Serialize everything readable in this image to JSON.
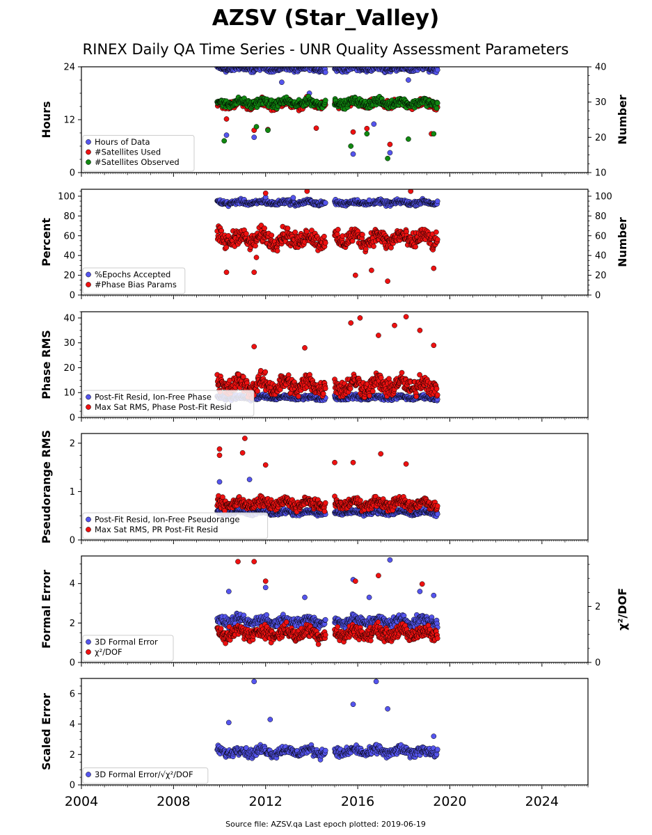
{
  "title": "AZSV (Star_Valley)",
  "subtitle": "RINEX Daily QA Time Series - UNR Quality Assessment Parameters",
  "footer": "Source file: AZSV.qa Last epoch plotted: 2019-06-19",
  "colors": {
    "blue": "#5555ee",
    "red": "#ee1111",
    "green": "#118811"
  },
  "x_axis": {
    "min": 2004.0,
    "max": 2026.0,
    "ticks": [
      "2004",
      "2008",
      "2012",
      "2016",
      "2020",
      "2024"
    ]
  },
  "chart_data": [
    {
      "type": "scatter",
      "ylabel_left": "Hours",
      "ylabel_right": "Number",
      "ylim_left": [
        0,
        24
      ],
      "ylim_right": [
        10,
        40
      ],
      "yticks_left": [
        "0",
        "12",
        "24"
      ],
      "yticks_right": [
        "10",
        "20",
        "30",
        "40"
      ],
      "legend": "lower-left",
      "series": [
        {
          "name": "Hours of Data",
          "color": "blue",
          "axis": "left",
          "base": 23.6,
          "spread": 0.5,
          "outliers": [
            [
              2010.3,
              8.5
            ],
            [
              2011.5,
              8.0
            ],
            [
              2012.7,
              20.5
            ],
            [
              2013.9,
              18.0
            ],
            [
              2015.8,
              4.2
            ],
            [
              2016.7,
              11.0
            ],
            [
              2017.4,
              4.5
            ],
            [
              2018.2,
              21.0
            ]
          ]
        },
        {
          "name": "#Satellites Used",
          "color": "red",
          "axis": "right",
          "base": 29.5,
          "spread": 1.0,
          "outliers": [
            [
              2010.3,
              25.2
            ],
            [
              2011.5,
              22.0
            ],
            [
              2012.1,
              22.2
            ],
            [
              2014.2,
              22.6
            ],
            [
              2015.8,
              21.5
            ],
            [
              2016.4,
              22.5
            ],
            [
              2017.4,
              18.0
            ],
            [
              2019.2,
              21.0
            ]
          ]
        },
        {
          "name": "#Satellites Observed",
          "color": "green",
          "axis": "right",
          "base": 29.8,
          "spread": 0.9,
          "outliers": [
            [
              2010.2,
              19.0
            ],
            [
              2011.6,
              23.0
            ],
            [
              2012.1,
              22.0
            ],
            [
              2015.7,
              17.5
            ],
            [
              2016.4,
              21.0
            ],
            [
              2017.3,
              14.0
            ],
            [
              2018.2,
              19.5
            ],
            [
              2019.3,
              21.0
            ]
          ]
        }
      ]
    },
    {
      "type": "scatter",
      "ylabel_left": "Percent",
      "ylabel_right": "Number",
      "ylim_left": [
        0,
        107
      ],
      "ylim_right": [
        0,
        107
      ],
      "yticks_left": [
        "0",
        "20",
        "40",
        "60",
        "80",
        "100"
      ],
      "yticks_right": [
        "0",
        "20",
        "40",
        "60",
        "80",
        "100"
      ],
      "legend": "lower-left",
      "series": [
        {
          "name": "%Epochs Accepted",
          "color": "blue",
          "axis": "left",
          "base": 93.5,
          "spread": 2.0,
          "outliers": [
            [
              2012.0,
              99.0
            ],
            [
              2013.2,
              98.5
            ],
            [
              2016.5,
              96.0
            ]
          ]
        },
        {
          "name": "#Phase Bias Params",
          "color": "red",
          "axis": "right",
          "base": 57.0,
          "spread": 7.0,
          "outliers": [
            [
              2010.3,
              23.0
            ],
            [
              2011.5,
              23.0
            ],
            [
              2011.6,
              38.0
            ],
            [
              2012.0,
              103.0
            ],
            [
              2013.8,
              105.0
            ],
            [
              2015.9,
              20.0
            ],
            [
              2016.6,
              25.0
            ],
            [
              2017.3,
              14.0
            ],
            [
              2018.3,
              105.0
            ],
            [
              2019.3,
              27.0
            ]
          ]
        }
      ]
    },
    {
      "type": "scatter",
      "ylabel_left": "Phase RMS",
      "ylim_left": [
        0,
        42.5
      ],
      "yticks_left": [
        "0",
        "10",
        "20",
        "30",
        "40"
      ],
      "legend": "lower-left",
      "series": [
        {
          "name": "Post-Fit Resid, Ion-Free Phase",
          "color": "blue",
          "axis": "left",
          "base": 8.0,
          "spread": 0.7,
          "outliers": []
        },
        {
          "name": "Max Sat RMS, Phase Post-Fit Resid",
          "color": "red",
          "axis": "left",
          "base": 13.0,
          "spread": 3.0,
          "outliers": [
            [
              2011.5,
              28.5
            ],
            [
              2013.7,
              28.0
            ],
            [
              2015.7,
              38.0
            ],
            [
              2016.1,
              40.0
            ],
            [
              2016.9,
              33.0
            ],
            [
              2017.6,
              37.0
            ],
            [
              2018.1,
              40.5
            ],
            [
              2018.7,
              35.0
            ],
            [
              2019.3,
              29.0
            ]
          ]
        }
      ]
    },
    {
      "type": "scatter",
      "ylabel_left": "Pseudorange RMS",
      "ylim_left": [
        0,
        2.2
      ],
      "yticks_left": [
        "0",
        "1",
        "2"
      ],
      "legend": "lower-left",
      "series": [
        {
          "name": "Post-Fit Resid, Ion-Free Pseudorange",
          "color": "blue",
          "axis": "left",
          "base": 0.57,
          "spread": 0.04,
          "outliers": [
            [
              2010.0,
              1.2
            ],
            [
              2011.3,
              1.25
            ]
          ]
        },
        {
          "name": "Max Sat RMS, PR Post-Fit Resid",
          "color": "red",
          "axis": "left",
          "base": 0.75,
          "spread": 0.09,
          "outliers": [
            [
              2010.0,
              1.88
            ],
            [
              2010.0,
              1.75
            ],
            [
              2011.0,
              1.8
            ],
            [
              2011.1,
              2.1
            ],
            [
              2012.0,
              1.55
            ],
            [
              2015.0,
              1.6
            ],
            [
              2015.8,
              1.6
            ],
            [
              2017.0,
              1.78
            ],
            [
              2018.1,
              1.57
            ]
          ]
        }
      ]
    },
    {
      "type": "scatter",
      "ylabel_left": "Formal Error",
      "ylabel_right": "χ²/DOF",
      "ylim_left": [
        0,
        5.4
      ],
      "ylim_right": [
        0,
        3.8
      ],
      "yticks_left": [
        "0",
        "2",
        "4"
      ],
      "yticks_right": [
        "0",
        "2"
      ],
      "legend": "lower-left",
      "series": [
        {
          "name": "3D Formal Error",
          "color": "blue",
          "axis": "left",
          "base": 2.1,
          "spread": 0.2,
          "outliers": [
            [
              2010.4,
              3.6
            ],
            [
              2012.0,
              3.8
            ],
            [
              2013.7,
              3.3
            ],
            [
              2015.8,
              4.2
            ],
            [
              2016.5,
              3.3
            ],
            [
              2017.4,
              5.2
            ],
            [
              2018.7,
              3.6
            ],
            [
              2019.3,
              3.4
            ]
          ]
        },
        {
          "name": "χ²/DOF",
          "color": "red",
          "axis": "right",
          "base": 1.05,
          "spread": 0.2,
          "outliers": [
            [
              2010.8,
              3.6
            ],
            [
              2011.5,
              3.6
            ],
            [
              2012.0,
              2.9
            ],
            [
              2015.9,
              2.9
            ],
            [
              2016.9,
              3.1
            ],
            [
              2018.8,
              2.8
            ]
          ]
        }
      ]
    },
    {
      "type": "scatter",
      "ylabel_left": "Scaled Error",
      "ylim_left": [
        0,
        7.0
      ],
      "yticks_left": [
        "0",
        "2",
        "4",
        "6"
      ],
      "legend": "lower-left",
      "series": [
        {
          "name": "3D Formal Error/√χ²/DOF",
          "color": "blue",
          "axis": "left",
          "base": 2.2,
          "spread": 0.25,
          "outliers": [
            [
              2010.4,
              4.1
            ],
            [
              2011.5,
              6.8
            ],
            [
              2012.2,
              4.3
            ],
            [
              2015.8,
              5.3
            ],
            [
              2016.8,
              6.8
            ],
            [
              2017.3,
              5.0
            ],
            [
              2019.3,
              3.2
            ]
          ]
        }
      ]
    }
  ],
  "data_segments": [
    [
      2009.9,
      2014.6
    ],
    [
      2015.0,
      2019.47
    ]
  ]
}
